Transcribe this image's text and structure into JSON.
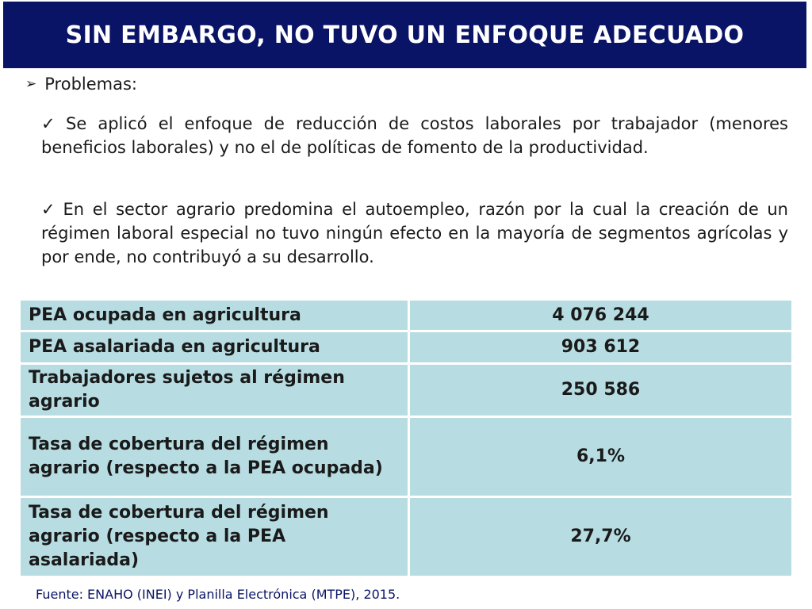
{
  "title": "SIN EMBARGO, NO TUVO UN ENFOQUE ADECUADO",
  "bullet": {
    "icon": "arrow-right-icon",
    "label": "Problemas:"
  },
  "items": [
    {
      "icon": "check-icon",
      "text": "Se aplicó el enfoque de reducción de costos laborales por trabajador (menores beneficios laborales) y no el de políticas de fomento de la productividad."
    },
    {
      "icon": "check-icon",
      "text": "En el sector agrario predomina el autoempleo, razón por la cual la creación de un régimen laboral especial no tuvo ningún efecto en la mayoría de segmentos agrícolas y por ende, no contribuyó a su desarrollo."
    }
  ],
  "table": {
    "rows": [
      {
        "label": "PEA ocupada en agricultura",
        "value": "4 076 244"
      },
      {
        "label": "PEA asalariada en agricultura",
        "value": "903 612"
      },
      {
        "label": "Trabajadores sujetos al régimen agrario",
        "value": "250 586"
      },
      {
        "label": "Tasa de cobertura del régimen agrario (respecto a la PEA ocupada)",
        "value": "6,1%"
      },
      {
        "label": "Tasa de cobertura del régimen agrario (respecto a la PEA asalariada)",
        "value": "27,7%"
      }
    ]
  },
  "source": "Fuente: ENAHO (INEI) y Planilla Electrónica (MTPE), 2015.",
  "colors": {
    "title_bg": "#0a1466",
    "table_bg": "#b7dde3",
    "source_text": "#0a1466"
  }
}
